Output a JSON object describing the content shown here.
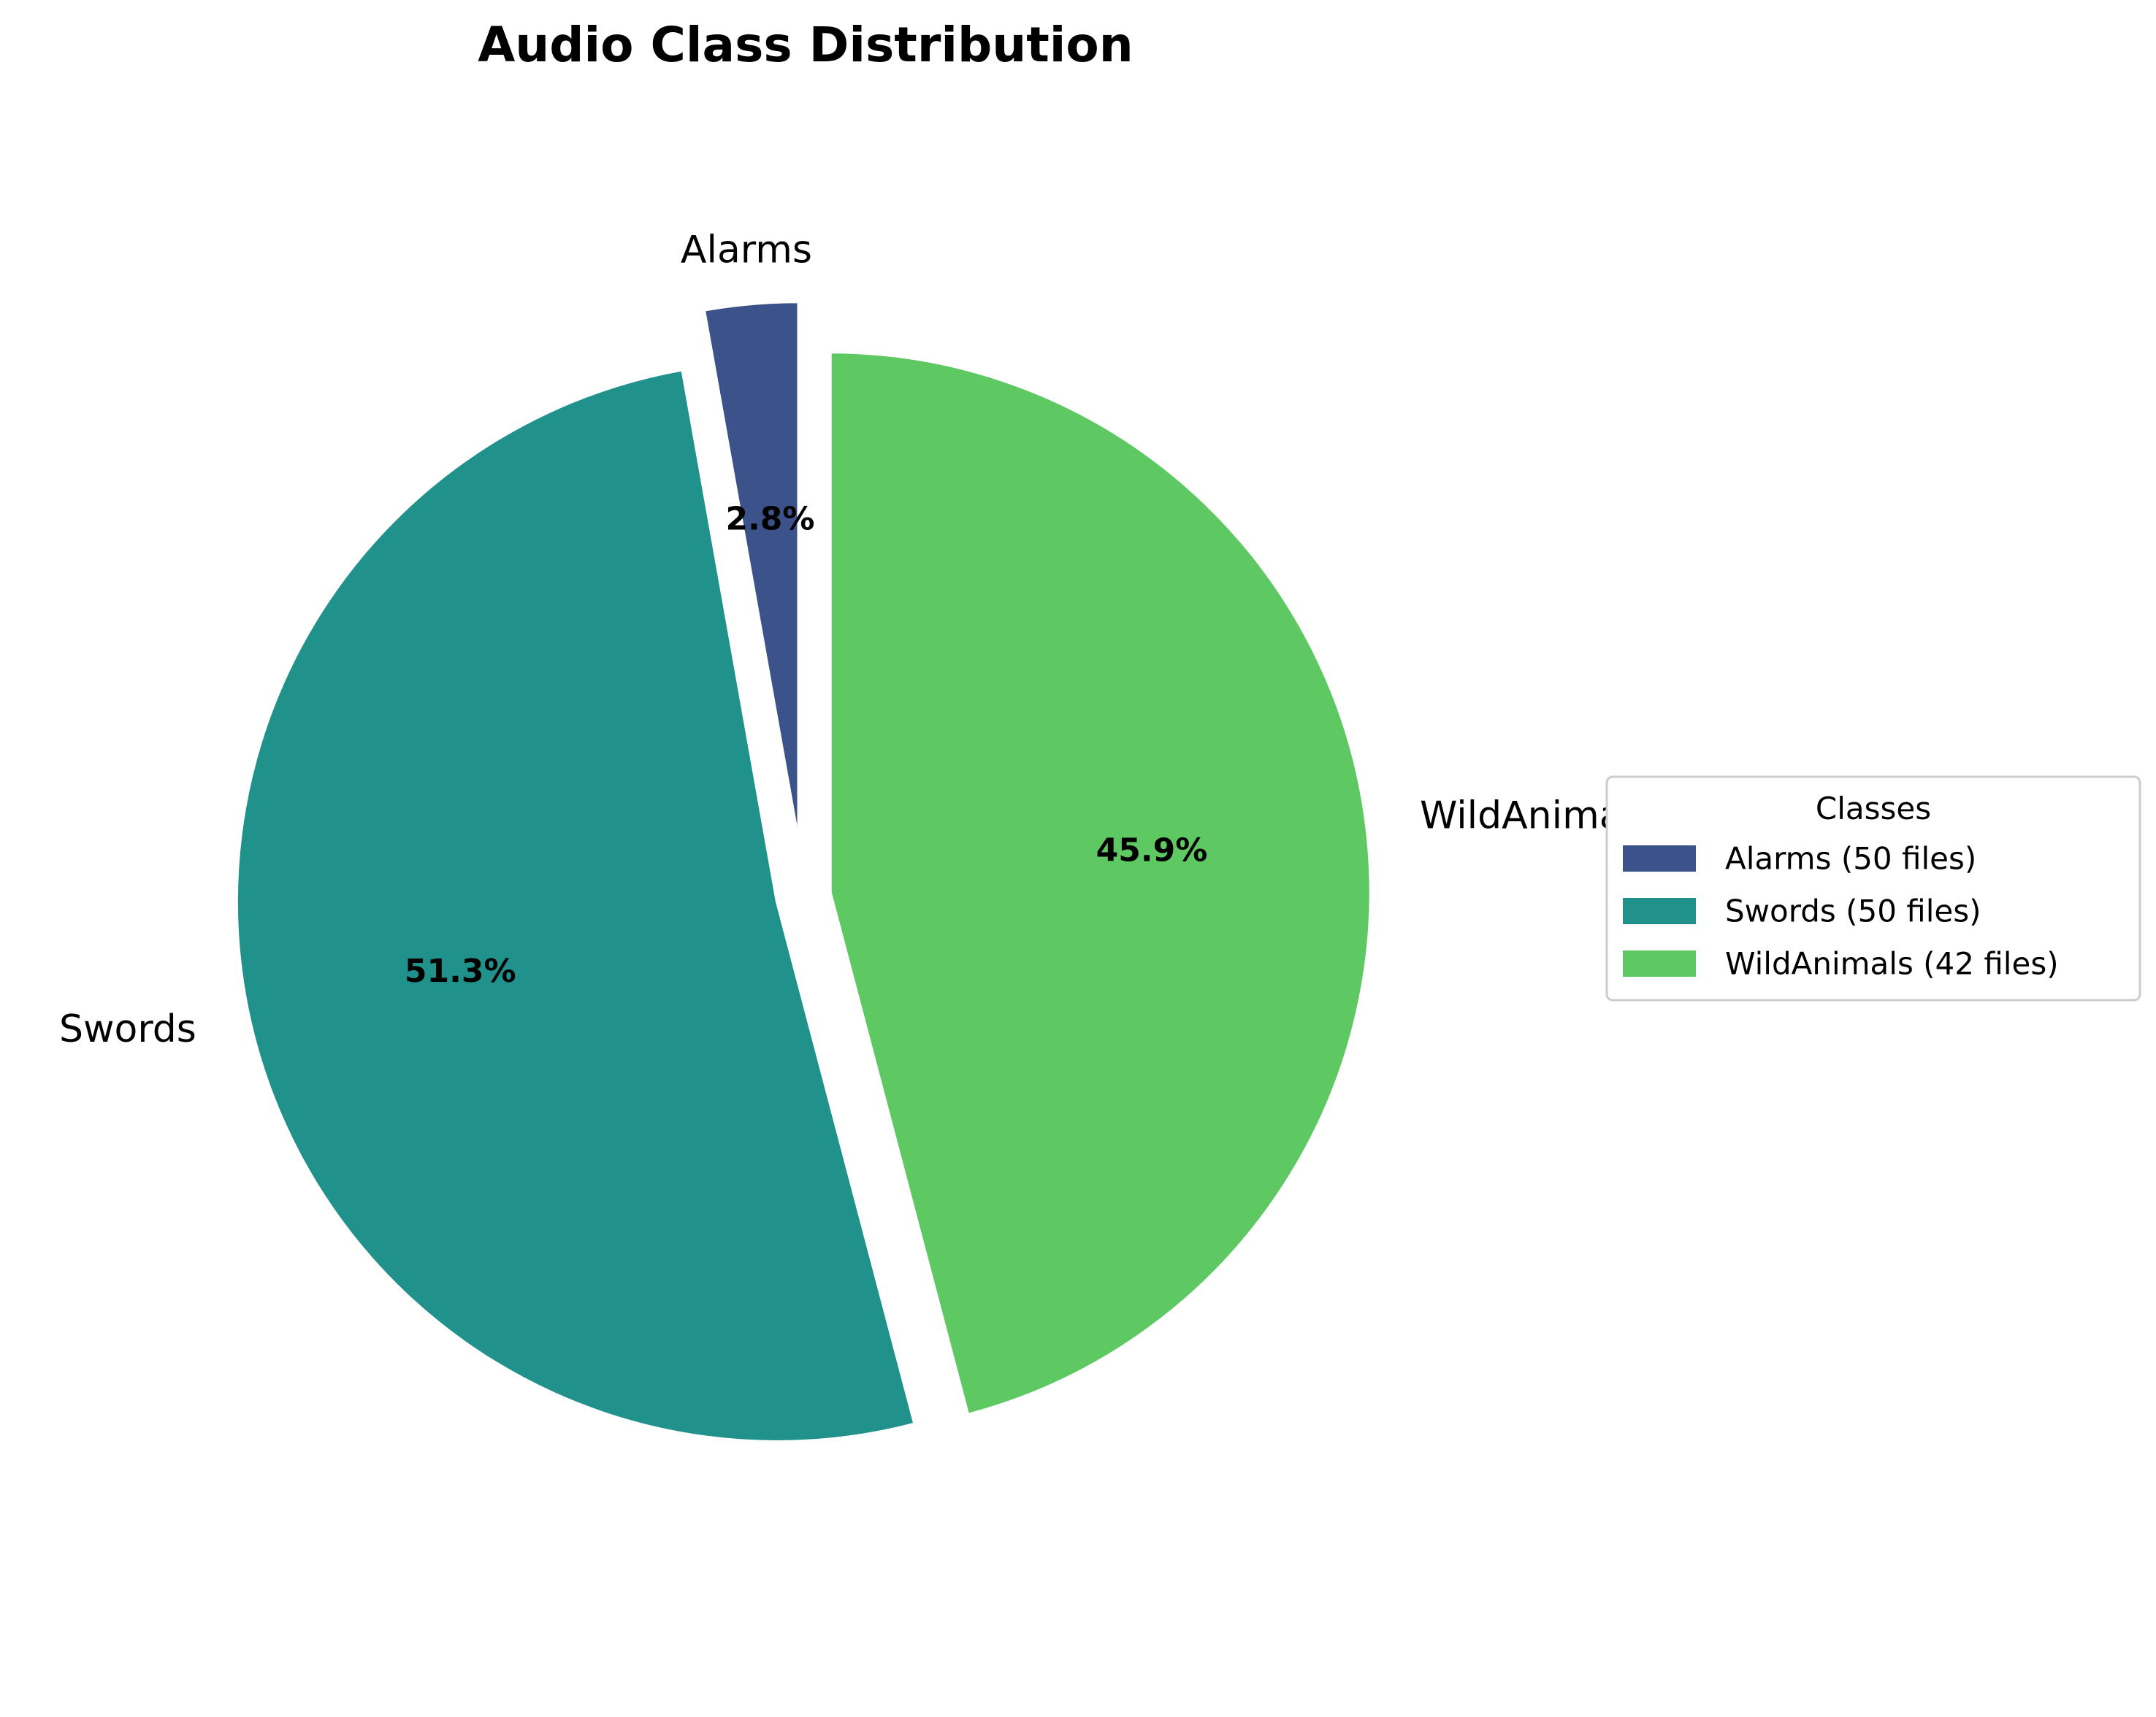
{
  "chart_data": {
    "type": "pie",
    "title": "Audio Class Distribution",
    "start_angle_deg": 90,
    "direction": "counterclockwise",
    "slices": [
      {
        "label": "Alarms",
        "value": 2.8,
        "pct_label": "2.8%",
        "color": "#3b528b",
        "explode": 0.1
      },
      {
        "label": "Swords",
        "value": 51.3,
        "pct_label": "51.3%",
        "color": "#21918c",
        "explode": 0.05
      },
      {
        "label": "WildAnimals",
        "value": 45.9,
        "pct_label": "45.9%",
        "color": "#5ec962",
        "explode": 0.05
      }
    ],
    "legend": {
      "title": "Classes",
      "placement": "right",
      "entries": [
        "Alarms (50 files)",
        "Swords (50 files)",
        "WildAnimals (42 files)"
      ]
    }
  }
}
